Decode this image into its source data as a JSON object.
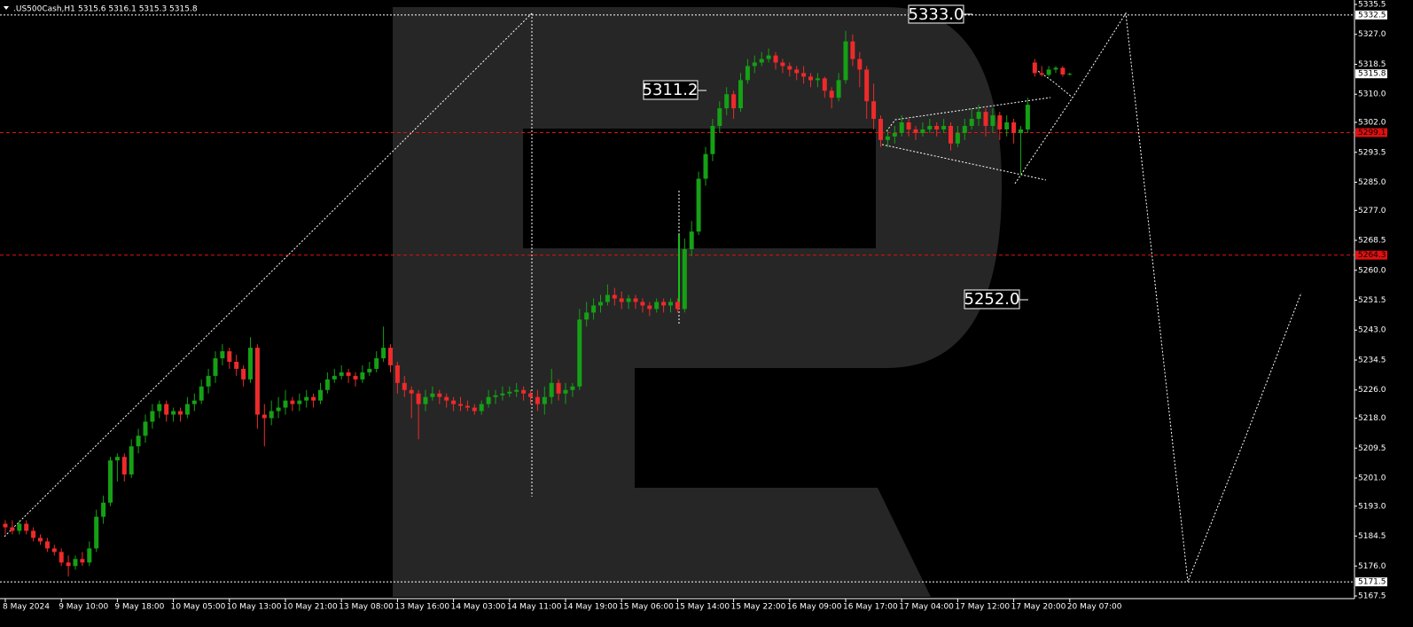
{
  "chart_data": {
    "type": "candlestick",
    "title": ".US500Cash,H1",
    "header_values": "5315.6 5316.1 5315.3 5315.8",
    "up_color": "#15a015",
    "down_color": "#ee2a2a",
    "annotations": [
      "5333.0",
      "5311.2",
      "5252.0"
    ],
    "ylim": [
      5167.5,
      5335.5
    ],
    "yticks": [
      5335.5,
      {
        "value": 5327,
        "label": "5327.0"
      },
      5318.5,
      {
        "value": 5310,
        "label": "5310.0"
      },
      {
        "value": 5302,
        "label": "5302.0"
      },
      5293.5,
      {
        "value": 5285,
        "label": "5285.0"
      },
      {
        "value": 5277,
        "label": "5277.0"
      },
      5268.5,
      {
        "value": 5260,
        "label": "5260.0"
      },
      5251.5,
      {
        "value": 5243,
        "label": "5243.0"
      },
      5234.5,
      {
        "value": 5226,
        "label": "5226.0"
      },
      {
        "value": 5218,
        "label": "5218.0"
      },
      5209.5,
      {
        "value": 5201,
        "label": "5201.0"
      },
      {
        "value": 5193,
        "label": "5193.0"
      },
      5184.5,
      {
        "value": 5176,
        "label": "5176.0"
      },
      5167.5
    ],
    "levels": [
      {
        "value": 5332.5,
        "color": "#ffffff",
        "line": "dotted"
      },
      {
        "value": 5315.8,
        "color": "#ffffff",
        "line": "none"
      },
      {
        "value": 5299.1,
        "color": "#e01010",
        "line": "dashed"
      },
      {
        "value": 5264.3,
        "color": "#e01010",
        "line": "dashed"
      },
      {
        "value": 5171.5,
        "color": "#ffffff",
        "line": "dotted"
      }
    ],
    "categories": [
      "8 May 2024",
      null,
      null,
      null,
      null,
      null,
      null,
      null,
      "9 May 10:00",
      null,
      null,
      null,
      null,
      null,
      null,
      null,
      "9 May 18:00",
      null,
      null,
      null,
      null,
      null,
      null,
      null,
      "10 May 05:00",
      null,
      null,
      null,
      null,
      null,
      null,
      null,
      "10 May 13:00",
      null,
      null,
      null,
      null,
      null,
      null,
      null,
      "10 May 21:00",
      null,
      null,
      null,
      null,
      null,
      null,
      null,
      "13 May 08:00",
      null,
      null,
      null,
      null,
      null,
      null,
      null,
      "13 May 16:00",
      null,
      null,
      null,
      null,
      null,
      null,
      null,
      "14 May 03:00",
      null,
      null,
      null,
      null,
      null,
      null,
      null,
      "14 May 11:00",
      null,
      null,
      null,
      null,
      null,
      null,
      null,
      "14 May 19:00",
      null,
      null,
      null,
      null,
      null,
      null,
      null,
      "15 May 06:00",
      null,
      null,
      null,
      null,
      null,
      null,
      null,
      "15 May 14:00",
      null,
      null,
      null,
      null,
      null,
      null,
      null,
      "15 May 22:00",
      null,
      null,
      null,
      null,
      null,
      null,
      null,
      "16 May 09:00",
      null,
      null,
      null,
      null,
      null,
      null,
      null,
      "16 May 17:00",
      null,
      null,
      null,
      null,
      null,
      null,
      null,
      "17 May 04:00",
      null,
      null,
      null,
      null,
      null,
      null,
      null,
      "17 May 12:00",
      null,
      null,
      null,
      null,
      null,
      null,
      null,
      "17 May 20:00",
      null,
      null,
      null,
      null,
      null,
      null,
      null,
      "20 May 07:00"
    ],
    "candles": [
      [
        5188,
        5189,
        5185,
        5187
      ],
      [
        5187,
        5189,
        5185,
        5186
      ],
      [
        5186,
        5189,
        5185,
        5188
      ],
      [
        5188,
        5189,
        5185,
        5186
      ],
      [
        5186,
        5187,
        5183,
        5184
      ],
      [
        5184,
        5185,
        5182,
        5183
      ],
      [
        5183,
        5184,
        5180,
        5181
      ],
      [
        5181,
        5182,
        5179,
        5180
      ],
      [
        5180,
        5181,
        5176,
        5177
      ],
      [
        5177,
        5179,
        5173,
        5176
      ],
      [
        5176,
        5179,
        5175,
        5178
      ],
      [
        5178,
        5180,
        5176,
        5177
      ],
      [
        5177,
        5183,
        5176,
        5181
      ],
      [
        5181,
        5192,
        5180,
        5190
      ],
      [
        5190,
        5196,
        5188,
        5194
      ],
      [
        5194,
        5207,
        5193,
        5206
      ],
      [
        5206,
        5208,
        5200,
        5207
      ],
      [
        5207,
        5208,
        5200,
        5202
      ],
      [
        5202,
        5212,
        5201,
        5210
      ],
      [
        5210,
        5215,
        5208,
        5213
      ],
      [
        5213,
        5219,
        5211,
        5217
      ],
      [
        5217,
        5222,
        5215,
        5220
      ],
      [
        5220,
        5223,
        5218,
        5222
      ],
      [
        5222,
        5223,
        5217,
        5219
      ],
      [
        5219,
        5221,
        5217,
        5220
      ],
      [
        5220,
        5221,
        5217,
        5219
      ],
      [
        5219,
        5224,
        5218,
        5222
      ],
      [
        5222,
        5225,
        5220,
        5223
      ],
      [
        5223,
        5229,
        5222,
        5227
      ],
      [
        5227,
        5232,
        5225,
        5230
      ],
      [
        5230,
        5237,
        5228,
        5235
      ],
      [
        5235,
        5239,
        5233,
        5237
      ],
      [
        5237,
        5238,
        5232,
        5234
      ],
      [
        5234,
        5236,
        5230,
        5232
      ],
      [
        5232,
        5233,
        5227,
        5229
      ],
      [
        5229,
        5241,
        5228,
        5238
      ],
      [
        5238,
        5239,
        5215,
        5219
      ],
      [
        5219,
        5222,
        5210,
        5218
      ],
      [
        5218,
        5223,
        5216,
        5220
      ],
      [
        5220,
        5224,
        5218,
        5221
      ],
      [
        5221,
        5226,
        5219,
        5223
      ],
      [
        5223,
        5224,
        5220,
        5222
      ],
      [
        5222,
        5225,
        5220,
        5223
      ],
      [
        5223,
        5226,
        5221,
        5224
      ],
      [
        5224,
        5225,
        5221,
        5223
      ],
      [
        5223,
        5228,
        5222,
        5226
      ],
      [
        5226,
        5231,
        5225,
        5229
      ],
      [
        5229,
        5232,
        5228,
        5230
      ],
      [
        5230,
        5233,
        5229,
        5231
      ],
      [
        5231,
        5232,
        5228,
        5230
      ],
      [
        5230,
        5231,
        5227,
        5229
      ],
      [
        5229,
        5233,
        5228,
        5231
      ],
      [
        5231,
        5234,
        5230,
        5232
      ],
      [
        5232,
        5237,
        5231,
        5235
      ],
      [
        5235,
        5244,
        5234,
        5238
      ],
      [
        5238,
        5239,
        5231,
        5233
      ],
      [
        5233,
        5234,
        5225,
        5228
      ],
      [
        5228,
        5230,
        5224,
        5226
      ],
      [
        5226,
        5227,
        5218,
        5225
      ],
      [
        5225,
        5226,
        5212,
        5222
      ],
      [
        5222,
        5226,
        5220,
        5224
      ],
      [
        5224,
        5227,
        5223,
        5225
      ],
      [
        5225,
        5226,
        5222,
        5224
      ],
      [
        5224,
        5225,
        5221,
        5223
      ],
      [
        5223,
        5224,
        5220,
        5222
      ],
      [
        5222,
        5224,
        5220,
        5221.5
      ],
      [
        5221.5,
        5223,
        5220,
        5221
      ],
      [
        5221,
        5222,
        5219,
        5220
      ],
      [
        5220,
        5223,
        5219,
        5222
      ],
      [
        5222,
        5226,
        5221,
        5224
      ],
      [
        5224,
        5226,
        5222,
        5224.5
      ],
      [
        5224.5,
        5227,
        5223,
        5225
      ],
      [
        5225,
        5227,
        5224,
        5225.5
      ],
      [
        5225.5,
        5228,
        5224,
        5226
      ],
      [
        5226,
        5227,
        5223,
        5225
      ],
      [
        5225,
        5226,
        5222,
        5224
      ],
      [
        5224,
        5226,
        5220,
        5222
      ],
      [
        5222,
        5227,
        5219,
        5224
      ],
      [
        5224,
        5232,
        5222,
        5228
      ],
      [
        5228,
        5229,
        5223,
        5225
      ],
      [
        5225,
        5228,
        5222,
        5226
      ],
      [
        5226,
        5228,
        5224,
        5227
      ],
      [
        5227,
        5249,
        5226,
        5246
      ],
      [
        5246,
        5251,
        5244,
        5248
      ],
      [
        5248,
        5252,
        5246,
        5250
      ],
      [
        5250,
        5253,
        5248,
        5251
      ],
      [
        5251,
        5256,
        5250,
        5253
      ],
      [
        5253,
        5255,
        5250,
        5252
      ],
      [
        5252,
        5254,
        5249,
        5251
      ],
      [
        5251,
        5253,
        5249,
        5252
      ],
      [
        5252,
        5253,
        5249,
        5251
      ],
      [
        5251,
        5252,
        5248,
        5250
      ],
      [
        5250,
        5251,
        5247,
        5249
      ],
      [
        5249,
        5252,
        5248,
        5251
      ],
      [
        5251,
        5252,
        5248,
        5250
      ],
      [
        5250,
        5252,
        5248,
        5251
      ],
      [
        5251,
        5252,
        5248,
        5249
      ],
      [
        5249,
        5269,
        5248,
        5266
      ],
      [
        5266,
        5274,
        5264,
        5271
      ],
      [
        5271,
        5288,
        5270,
        5286
      ],
      [
        5286,
        5295,
        5284,
        5293
      ],
      [
        5293,
        5303,
        5291,
        5301
      ],
      [
        5301,
        5308,
        5299,
        5306
      ],
      [
        5306,
        5312,
        5304,
        5310
      ],
      [
        5310,
        5311,
        5303,
        5306
      ],
      [
        5306,
        5316,
        5305,
        5314
      ],
      [
        5314,
        5320,
        5313,
        5318
      ],
      [
        5318,
        5321,
        5316,
        5319
      ],
      [
        5319,
        5322,
        5318,
        5320
      ],
      [
        5320,
        5323,
        5319,
        5321
      ],
      [
        5321,
        5322,
        5317,
        5319
      ],
      [
        5319,
        5320,
        5316,
        5318
      ],
      [
        5318,
        5319,
        5315,
        5317
      ],
      [
        5317,
        5318,
        5314,
        5316
      ],
      [
        5316,
        5318,
        5313,
        5315
      ],
      [
        5315,
        5316,
        5312,
        5314
      ],
      [
        5314,
        5316,
        5312,
        5314.5
      ],
      [
        5314.5,
        5315,
        5309,
        5311
      ],
      [
        5311,
        5312,
        5306,
        5309
      ],
      [
        5309,
        5316,
        5308,
        5314
      ],
      [
        5314,
        5328,
        5313,
        5325
      ],
      [
        5325,
        5327,
        5318,
        5320
      ],
      [
        5320,
        5322,
        5312,
        5317
      ],
      [
        5317,
        5318,
        5303,
        5308
      ],
      [
        5308,
        5313,
        5300,
        5303
      ],
      [
        5303,
        5304,
        5295,
        5297
      ],
      [
        5297,
        5300,
        5295,
        5298
      ],
      [
        5298,
        5301,
        5296,
        5299
      ],
      [
        5299,
        5304,
        5298,
        5302
      ],
      [
        5302,
        5303,
        5298,
        5300
      ],
      [
        5300,
        5301,
        5297,
        5299
      ],
      [
        5299,
        5302,
        5298,
        5300
      ],
      [
        5300,
        5303,
        5299,
        5301
      ],
      [
        5301,
        5302,
        5298,
        5300
      ],
      [
        5300,
        5303,
        5299,
        5301
      ],
      [
        5301,
        5302,
        5294,
        5296
      ],
      [
        5296,
        5301,
        5295,
        5299
      ],
      [
        5299,
        5303,
        5297,
        5301
      ],
      [
        5301,
        5306,
        5300,
        5303
      ],
      [
        5303,
        5307,
        5301,
        5305
      ],
      [
        5305,
        5306,
        5298,
        5301
      ],
      [
        5301,
        5306,
        5299,
        5304
      ],
      [
        5304,
        5305,
        5297,
        5300
      ],
      [
        5300,
        5304,
        5298,
        5302
      ],
      [
        5302,
        5303,
        5296,
        5299
      ],
      [
        5299,
        5301,
        5287,
        5300
      ],
      [
        5300,
        5309,
        5299,
        5307
      ],
      [
        5319,
        5320,
        5315,
        5316
      ],
      [
        5316,
        5318,
        5315,
        5315.5
      ],
      [
        5315.5,
        5318,
        5315,
        5317
      ],
      [
        5317,
        5318,
        5316,
        5317.5
      ],
      [
        5317.5,
        5318,
        5315,
        5315.6
      ],
      [
        5315.6,
        5316.1,
        5315.3,
        5315.8
      ]
    ]
  }
}
